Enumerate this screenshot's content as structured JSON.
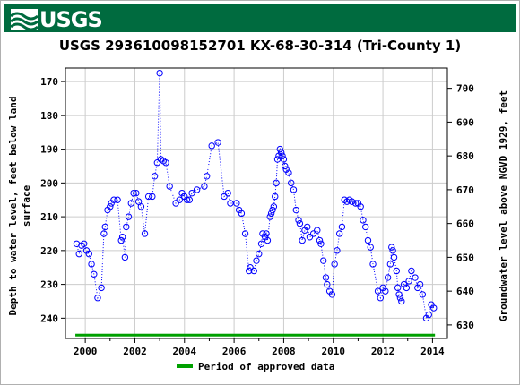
{
  "header": {
    "logo_text": "USGS",
    "logo_icon": "usgs-wave-icon",
    "brand_color": "#006b3f"
  },
  "chart_data": {
    "type": "scatter",
    "title": "USGS 293610098152701 KX-68-30-314 (Tri-County 1)",
    "ylabel_left_line1": "Depth to water level, feet below land",
    "ylabel_left_line2": "surface",
    "ylabel_right": "Groundwater level above NGVD 1929, feet",
    "xlim": [
      1999.2,
      2014.6
    ],
    "ylim_left": [
      246,
      166
    ],
    "ylim_right": [
      626,
      706
    ],
    "x_ticks": [
      2000,
      2002,
      2004,
      2006,
      2008,
      2010,
      2012,
      2014
    ],
    "y_ticks_left": [
      170,
      180,
      190,
      200,
      210,
      220,
      230,
      240
    ],
    "y_ticks_right": [
      700,
      690,
      680,
      670,
      660,
      650,
      640,
      630
    ],
    "grid": true,
    "series_color": "#0000ff",
    "approved_color": "#00a000",
    "legend": {
      "label": "Period of approved data",
      "placement": "bottom"
    },
    "approved_period": [
      1999.6,
      2014.1
    ],
    "points": [
      [
        1999.65,
        218
      ],
      [
        1999.75,
        221
      ],
      [
        1999.85,
        218.5
      ],
      [
        1999.95,
        218
      ],
      [
        2000.05,
        220
      ],
      [
        2000.15,
        221
      ],
      [
        2000.25,
        224
      ],
      [
        2000.35,
        227
      ],
      [
        2000.5,
        234
      ],
      [
        2000.65,
        231
      ],
      [
        2000.75,
        215
      ],
      [
        2000.8,
        213
      ],
      [
        2000.9,
        208
      ],
      [
        2001.0,
        207
      ],
      [
        2001.05,
        206
      ],
      [
        2001.15,
        205
      ],
      [
        2001.3,
        205
      ],
      [
        2001.45,
        217
      ],
      [
        2001.5,
        216
      ],
      [
        2001.6,
        222
      ],
      [
        2001.65,
        213
      ],
      [
        2001.75,
        210
      ],
      [
        2001.85,
        206
      ],
      [
        2001.95,
        203
      ],
      [
        2002.05,
        203
      ],
      [
        2002.15,
        205.5
      ],
      [
        2002.25,
        207
      ],
      [
        2002.4,
        215
      ],
      [
        2002.55,
        204
      ],
      [
        2002.7,
        204
      ],
      [
        2002.8,
        198
      ],
      [
        2002.9,
        194
      ],
      [
        2003.0,
        167.5
      ],
      [
        2003.05,
        193
      ],
      [
        2003.15,
        193.5
      ],
      [
        2003.25,
        194
      ],
      [
        2003.4,
        201
      ],
      [
        2003.65,
        206
      ],
      [
        2003.8,
        205
      ],
      [
        2003.9,
        203
      ],
      [
        2004.0,
        204
      ],
      [
        2004.1,
        205
      ],
      [
        2004.2,
        205
      ],
      [
        2004.3,
        203
      ],
      [
        2004.5,
        202
      ],
      [
        2004.8,
        201
      ],
      [
        2004.9,
        198
      ],
      [
        2005.1,
        189
      ],
      [
        2005.35,
        188
      ],
      [
        2005.6,
        204
      ],
      [
        2005.75,
        203
      ],
      [
        2005.85,
        206
      ],
      [
        2006.1,
        206
      ],
      [
        2006.2,
        208
      ],
      [
        2006.3,
        209
      ],
      [
        2006.45,
        215
      ],
      [
        2006.6,
        226
      ],
      [
        2006.65,
        225
      ],
      [
        2006.8,
        226
      ],
      [
        2006.9,
        223
      ],
      [
        2007.0,
        221
      ],
      [
        2007.1,
        218
      ],
      [
        2007.15,
        215
      ],
      [
        2007.25,
        216
      ],
      [
        2007.3,
        215
      ],
      [
        2007.35,
        217
      ],
      [
        2007.45,
        210
      ],
      [
        2007.5,
        209
      ],
      [
        2007.55,
        208
      ],
      [
        2007.6,
        207
      ],
      [
        2007.65,
        204
      ],
      [
        2007.7,
        200
      ],
      [
        2007.75,
        193
      ],
      [
        2007.8,
        192
      ],
      [
        2007.85,
        190
      ],
      [
        2007.9,
        191
      ],
      [
        2007.95,
        192
      ],
      [
        2008.0,
        193
      ],
      [
        2008.05,
        195
      ],
      [
        2008.1,
        196
      ],
      [
        2008.2,
        197
      ],
      [
        2008.3,
        200
      ],
      [
        2008.4,
        202
      ],
      [
        2008.5,
        208
      ],
      [
        2008.6,
        211
      ],
      [
        2008.65,
        212
      ],
      [
        2008.75,
        217
      ],
      [
        2008.85,
        214
      ],
      [
        2008.95,
        213
      ],
      [
        2009.05,
        216
      ],
      [
        2009.2,
        215
      ],
      [
        2009.35,
        214
      ],
      [
        2009.45,
        217
      ],
      [
        2009.5,
        218
      ],
      [
        2009.6,
        223
      ],
      [
        2009.7,
        228
      ],
      [
        2009.75,
        230
      ],
      [
        2009.85,
        232
      ],
      [
        2009.95,
        233
      ],
      [
        2010.05,
        224
      ],
      [
        2010.15,
        220
      ],
      [
        2010.25,
        215
      ],
      [
        2010.35,
        213
      ],
      [
        2010.45,
        205
      ],
      [
        2010.55,
        205.5
      ],
      [
        2010.65,
        205
      ],
      [
        2010.75,
        205.5
      ],
      [
        2010.9,
        206
      ],
      [
        2011.0,
        206
      ],
      [
        2011.1,
        207
      ],
      [
        2011.2,
        211
      ],
      [
        2011.3,
        213
      ],
      [
        2011.4,
        217
      ],
      [
        2011.5,
        219
      ],
      [
        2011.6,
        224
      ],
      [
        2011.8,
        232
      ],
      [
        2011.9,
        234
      ],
      [
        2012.0,
        231
      ],
      [
        2012.1,
        232
      ],
      [
        2012.2,
        228
      ],
      [
        2012.3,
        224
      ],
      [
        2012.35,
        219
      ],
      [
        2012.4,
        220
      ],
      [
        2012.45,
        222
      ],
      [
        2012.55,
        226
      ],
      [
        2012.6,
        231
      ],
      [
        2012.65,
        233
      ],
      [
        2012.7,
        234
      ],
      [
        2012.75,
        235
      ],
      [
        2012.85,
        230
      ],
      [
        2012.95,
        231
      ],
      [
        2013.05,
        229
      ],
      [
        2013.15,
        226
      ],
      [
        2013.3,
        228
      ],
      [
        2013.4,
        231
      ],
      [
        2013.5,
        230
      ],
      [
        2013.6,
        233
      ],
      [
        2013.75,
        240
      ],
      [
        2013.85,
        239
      ],
      [
        2013.95,
        236
      ],
      [
        2014.05,
        237
      ]
    ]
  }
}
